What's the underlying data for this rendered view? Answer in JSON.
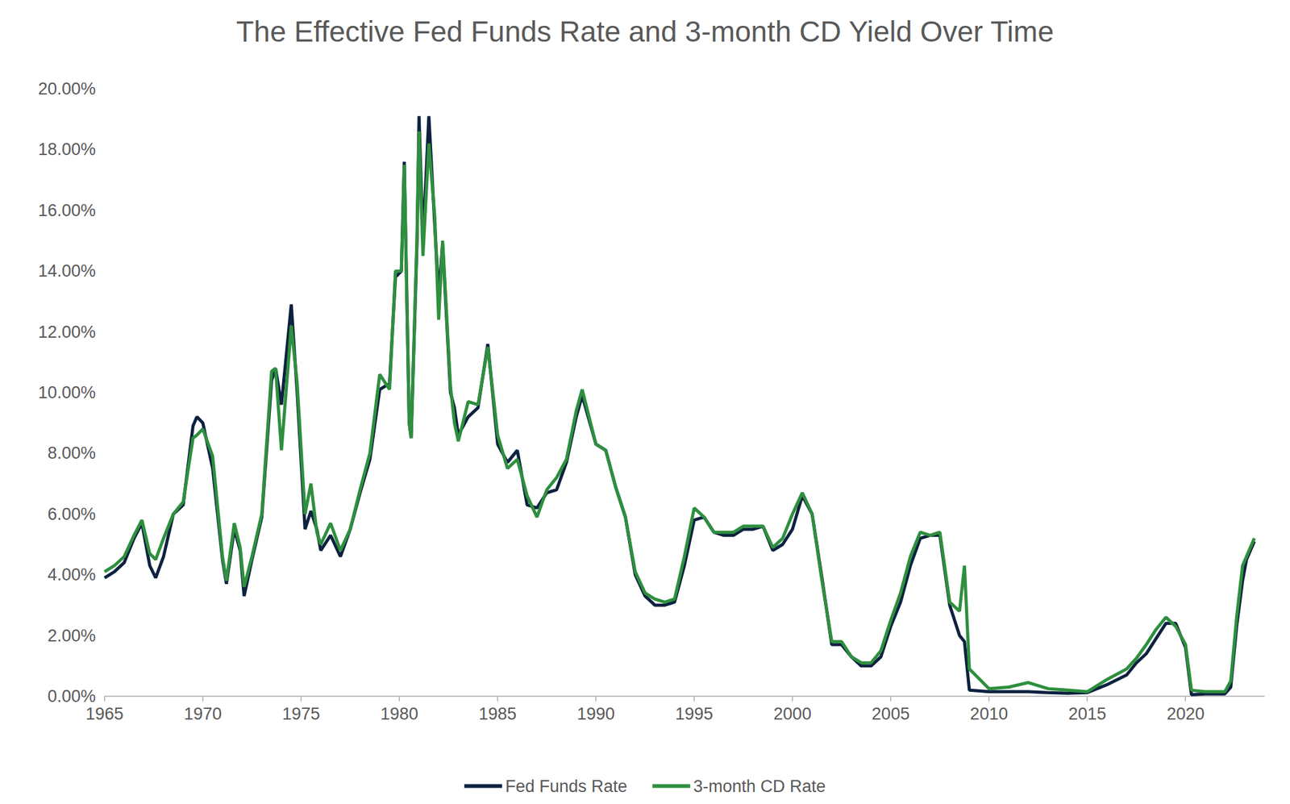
{
  "chart_data": {
    "type": "line",
    "title": "The Effective Fed Funds Rate and 3-month CD Yield Over Time",
    "x": [
      1965.0,
      1965.5,
      1966.0,
      1966.5,
      1966.9,
      1967.3,
      1967.6,
      1968.0,
      1968.5,
      1969.0,
      1969.5,
      1969.7,
      1970.0,
      1970.5,
      1971.0,
      1971.2,
      1971.6,
      1971.9,
      1972.1,
      1972.5,
      1973.0,
      1973.5,
      1973.7,
      1974.0,
      1974.5,
      1974.8,
      1975.2,
      1975.5,
      1975.8,
      1976.0,
      1976.5,
      1977.0,
      1977.5,
      1978.0,
      1978.5,
      1979.0,
      1979.5,
      1979.8,
      1980.1,
      1980.25,
      1980.5,
      1980.6,
      1980.9,
      1981.0,
      1981.2,
      1981.5,
      1981.8,
      1982.0,
      1982.2,
      1982.6,
      1982.8,
      1983.0,
      1983.5,
      1984.0,
      1984.5,
      1985.0,
      1985.5,
      1986.0,
      1986.5,
      1987.0,
      1987.5,
      1988.0,
      1988.5,
      1989.0,
      1989.3,
      1990.0,
      1990.5,
      1991.0,
      1991.5,
      1992.0,
      1992.5,
      1993.0,
      1993.5,
      1994.0,
      1994.5,
      1995.0,
      1995.5,
      1996.0,
      1996.5,
      1997.0,
      1997.5,
      1998.0,
      1998.5,
      1999.0,
      1999.5,
      2000.0,
      2000.5,
      2001.0,
      2001.5,
      2002.0,
      2002.5,
      2003.0,
      2003.5,
      2004.0,
      2004.5,
      2005.0,
      2005.5,
      2006.0,
      2006.5,
      2007.0,
      2007.5,
      2008.0,
      2008.5,
      2008.75,
      2009.0,
      2010.0,
      2011.0,
      2012.0,
      2013.0,
      2014.0,
      2015.0,
      2016.0,
      2017.0,
      2017.5,
      2018.0,
      2018.5,
      2019.0,
      2019.5,
      2020.0,
      2020.3,
      2021.0,
      2022.0,
      2022.3,
      2022.6,
      2022.9,
      2023.1,
      2023.5
    ],
    "series": [
      {
        "name": "Fed Funds Rate",
        "color": "#0d2240",
        "values": [
          3.9,
          4.1,
          4.4,
          5.2,
          5.7,
          4.3,
          3.9,
          4.6,
          6.0,
          6.3,
          8.9,
          9.2,
          9.0,
          7.5,
          4.5,
          3.7,
          5.5,
          4.8,
          3.3,
          4.5,
          5.9,
          10.4,
          10.8,
          9.6,
          12.9,
          10.0,
          5.5,
          6.1,
          5.5,
          4.8,
          5.3,
          4.6,
          5.5,
          6.7,
          7.8,
          10.1,
          10.3,
          13.8,
          14.0,
          17.6,
          9.0,
          8.5,
          15.0,
          19.1,
          15.0,
          19.1,
          15.5,
          13.2,
          14.9,
          10.0,
          9.5,
          8.6,
          9.2,
          9.5,
          11.6,
          8.3,
          7.7,
          8.1,
          6.3,
          6.2,
          6.7,
          6.8,
          7.7,
          9.2,
          9.9,
          8.3,
          8.1,
          6.9,
          5.9,
          4.0,
          3.3,
          3.0,
          3.0,
          3.1,
          4.3,
          5.8,
          5.9,
          5.4,
          5.3,
          5.3,
          5.5,
          5.5,
          5.6,
          4.8,
          5.0,
          5.5,
          6.6,
          6.0,
          3.9,
          1.7,
          1.7,
          1.3,
          1.0,
          1.0,
          1.3,
          2.3,
          3.1,
          4.3,
          5.2,
          5.3,
          5.3,
          3.0,
          2.0,
          1.8,
          0.2,
          0.15,
          0.15,
          0.15,
          0.12,
          0.1,
          0.12,
          0.38,
          0.7,
          1.1,
          1.4,
          1.9,
          2.4,
          2.4,
          1.6,
          0.05,
          0.08,
          0.08,
          0.3,
          2.3,
          3.8,
          4.5,
          5.1
        ]
      },
      {
        "name": "3-month CD Rate",
        "color": "#2e8f3e",
        "values": [
          4.1,
          4.3,
          4.6,
          5.3,
          5.8,
          4.7,
          4.5,
          5.2,
          6.0,
          6.4,
          8.5,
          8.6,
          8.8,
          7.9,
          4.6,
          3.8,
          5.7,
          4.9,
          3.6,
          4.6,
          6.0,
          10.7,
          10.8,
          8.1,
          12.2,
          10.3,
          6.0,
          7.0,
          5.4,
          5.0,
          5.7,
          4.8,
          5.5,
          6.8,
          8.0,
          10.6,
          10.1,
          14.0,
          14.0,
          17.5,
          9.0,
          8.5,
          15.2,
          18.6,
          14.5,
          18.2,
          15.8,
          12.4,
          15.0,
          10.2,
          9.0,
          8.4,
          9.7,
          9.6,
          11.5,
          8.6,
          7.5,
          7.8,
          6.6,
          5.9,
          6.8,
          7.2,
          7.8,
          9.4,
          10.1,
          8.3,
          8.1,
          6.9,
          5.9,
          4.1,
          3.4,
          3.2,
          3.1,
          3.2,
          4.6,
          6.2,
          5.9,
          5.4,
          5.4,
          5.4,
          5.6,
          5.6,
          5.6,
          4.9,
          5.2,
          6.0,
          6.7,
          6.0,
          3.8,
          1.8,
          1.8,
          1.3,
          1.1,
          1.1,
          1.5,
          2.5,
          3.4,
          4.6,
          5.4,
          5.3,
          5.4,
          3.1,
          2.8,
          4.3,
          0.9,
          0.25,
          0.3,
          0.45,
          0.25,
          0.2,
          0.15,
          0.55,
          0.9,
          1.25,
          1.7,
          2.2,
          2.6,
          2.3,
          1.7,
          0.2,
          0.15,
          0.15,
          0.5,
          2.6,
          4.3,
          4.6,
          5.2
        ]
      }
    ],
    "xlim": [
      1965,
      2024
    ],
    "xticks": [
      1965,
      1970,
      1975,
      1980,
      1985,
      1990,
      1995,
      2000,
      2005,
      2010,
      2015,
      2020
    ],
    "ylim": [
      0,
      20
    ],
    "yticks": [
      {
        "value": 0,
        "label": "0.00%"
      },
      {
        "value": 2,
        "label": "2.00%"
      },
      {
        "value": 4,
        "label": "4.00%"
      },
      {
        "value": 6,
        "label": "6.00%"
      },
      {
        "value": 8,
        "label": "8.00%"
      },
      {
        "value": 10,
        "label": "10.00%"
      },
      {
        "value": 12,
        "label": "12.00%"
      },
      {
        "value": 14,
        "label": "14.00%"
      },
      {
        "value": 16,
        "label": "16.00%"
      },
      {
        "value": 18,
        "label": "18.00%"
      },
      {
        "value": 20,
        "label": "20.00%"
      }
    ],
    "grid": false,
    "legend": "bottom"
  }
}
